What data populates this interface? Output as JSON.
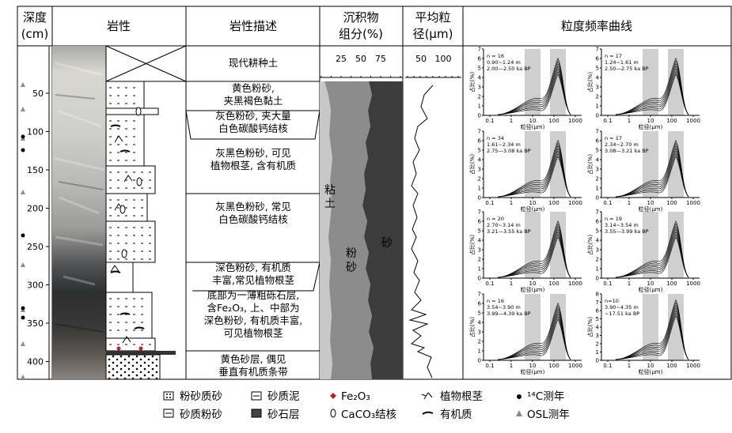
{
  "headers": {
    "depth_line1": "深度",
    "depth_line2": "(cm)",
    "lithology": "岩性",
    "description": "岩性描述",
    "components_line1": "沉积物",
    "components_line2": "组分(%)",
    "grain_line1": "平均粒",
    "grain_line2": "径(μm)",
    "curves": "粒度频率曲线"
  },
  "depth_ticks": [
    "50",
    "100",
    "150",
    "200",
    "250",
    "300",
    "350",
    "400"
  ],
  "component_ticks": [
    "25",
    "50",
    "75"
  ],
  "grain_ticks": [
    "50",
    "100"
  ],
  "component_labels": {
    "clay": "粘",
    "clay2": "土",
    "silt": "粉",
    "silt2": "砂",
    "sand": "砂"
  },
  "descriptions": [
    {
      "lines": [
        "现代耕种土"
      ]
    },
    {
      "lines": [
        "黄色粉砂,",
        "夹黑褐色黏土"
      ]
    },
    {
      "lines": [
        "灰色粉砂, 夹大量",
        "白色碳酸钙结核"
      ]
    },
    {
      "lines": [
        "灰黑色粉砂, 可见",
        "植物根茎, 含有机质"
      ]
    },
    {
      "lines": [
        "灰黑色粉砂, 常见",
        "白色碳酸钙结核"
      ]
    },
    {
      "lines": [
        "深色粉砂, 有机质",
        "丰富,常见植物根茎"
      ]
    },
    {
      "lines": [
        "底部为一薄粗砾石层,",
        "含Fe₂O₃, 上、中部为",
        "深色粉砂, 有机质丰富,",
        "可见植物根茎"
      ]
    },
    {
      "lines": [
        "黄色砂层, 偶见",
        "垂直有机质条带"
      ]
    }
  ],
  "panels": [
    {
      "n": "n = 16",
      "range": "0.90~1.24 m",
      "age": "2.00—2.50 ka BP"
    },
    {
      "n": "n = 17",
      "range": "1.24~1.61 m",
      "age": "2.50—2.75 ka BP"
    },
    {
      "n": "n = 34",
      "range": "1.61~2.34 m",
      "age": "2.75—3.08 ka BP"
    },
    {
      "n": "n = 17",
      "range": "2.34~2.70 m",
      "age": "3.08—3.21 ka BP"
    },
    {
      "n": "n = 20",
      "range": "2.70~3.14 m",
      "age": "3.21—3.55 ka BP"
    },
    {
      "n": "n = 19",
      "range": "3.14~3.54 m",
      "age": "3.55—3.99 ka BP"
    },
    {
      "n": "n = 16",
      "range": "3.54~3.90 m",
      "age": "3.99—4.39 ka BP"
    },
    {
      "n": "n=10",
      "range": "3.90~4.35 m",
      "age": "~17.51 ka BP"
    }
  ],
  "panel_axes": {
    "ylabel": "占比(%)",
    "xlabel": "粒径(μm)",
    "xticks": [
      "0.1",
      "1",
      "10",
      "100",
      "1000"
    ],
    "yticks_a": [
      "0",
      "1",
      "2",
      "3",
      "4",
      "5",
      "6",
      "7"
    ],
    "yticks_b": [
      "0",
      "1",
      "2",
      "3",
      "4",
      "5",
      "6",
      "7",
      "8"
    ]
  },
  "legend": {
    "sandy_silt_label": "粉砂质砂",
    "silty_sand_label": "砂质粉砂",
    "sandy_mud_label": "砂质泥",
    "gravel_label": "砂石层",
    "fe_label": "Fe₂O₃",
    "caco3_label": "CaCO₃结核",
    "root_label": "植物根茎",
    "organic_label": "有机质",
    "c14_label": "¹⁴C测年",
    "osl_label": "OSL测年"
  },
  "colors": {
    "clay": "#c8c8c8",
    "silt": "#8c8c8c",
    "sand": "#3c3c3c",
    "band": "#cfcfcf",
    "fe": "#b3262e"
  }
}
